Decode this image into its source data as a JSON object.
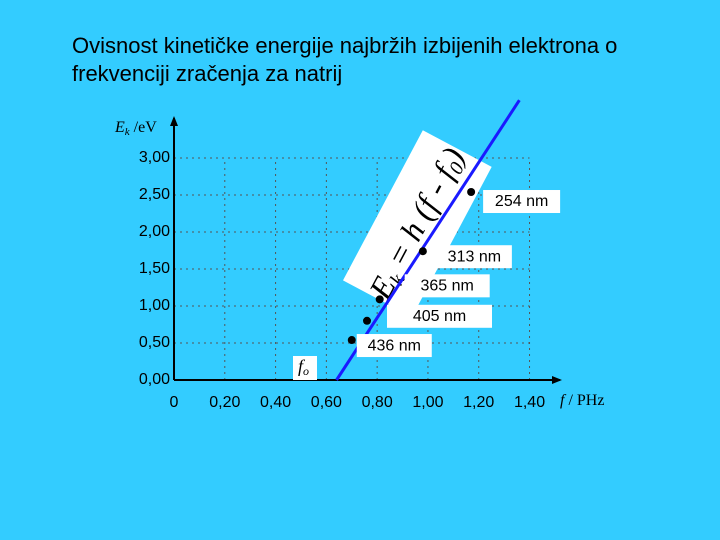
{
  "chart_data": {
    "type": "scatter",
    "title_lines": [
      "Ovisnost kinetičke energije najbržih izbijenih elektrona o",
      "frekvenciji zračenja za natrij"
    ],
    "y_label": {
      "symbol": "E",
      "sub": "k",
      "unit": " /eV"
    },
    "x_label": {
      "symbol": "f",
      "unit": " / PHz"
    },
    "f0_label": {
      "symbol": "f",
      "sub": "o"
    },
    "formula": {
      "e": "E",
      "k": "k",
      "eq": " = h (f - f",
      "zero": "0",
      "close": ")"
    },
    "xlim": [
      0,
      1.52
    ],
    "ylim": [
      0,
      3.54
    ],
    "xticks": [
      0,
      {
        "value": 0.2,
        "label": "0,20"
      },
      {
        "value": 0.4,
        "label": "0,40"
      },
      {
        "value": 0.6,
        "label": "0,60"
      },
      {
        "value": 0.8,
        "label": "0,80"
      },
      {
        "value": 1.0,
        "label": "1,00"
      },
      {
        "value": 1.2,
        "label": "1,20"
      },
      {
        "value": 1.4,
        "label": "1,40"
      }
    ],
    "yticks": [
      {
        "value": 0,
        "label": "0,00"
      },
      {
        "value": 0.5,
        "label": "0,50"
      },
      {
        "value": 1.0,
        "label": "1,00"
      },
      {
        "value": 1.5,
        "label": "1,50"
      },
      {
        "value": 2.0,
        "label": "2,00"
      },
      {
        "value": 2.5,
        "label": "2,50"
      },
      {
        "value": 3.0,
        "label": "3,00"
      }
    ],
    "grid": true,
    "series": [
      {
        "color": "#000000",
        "x": [
          0.7,
          0.76,
          0.81,
          0.98,
          1.17
        ],
        "values": [
          0.54,
          0.8,
          1.09,
          1.74,
          2.54
        ],
        "labels": [
          "436 nm",
          "405 nm",
          "365 nm",
          "313 nm",
          "254 nm"
        ]
      },
      {
        "color": "#1a1aff",
        "x": [
          0.64,
          1.36
        ],
        "values": [
          0,
          3.78
        ]
      }
    ]
  }
}
